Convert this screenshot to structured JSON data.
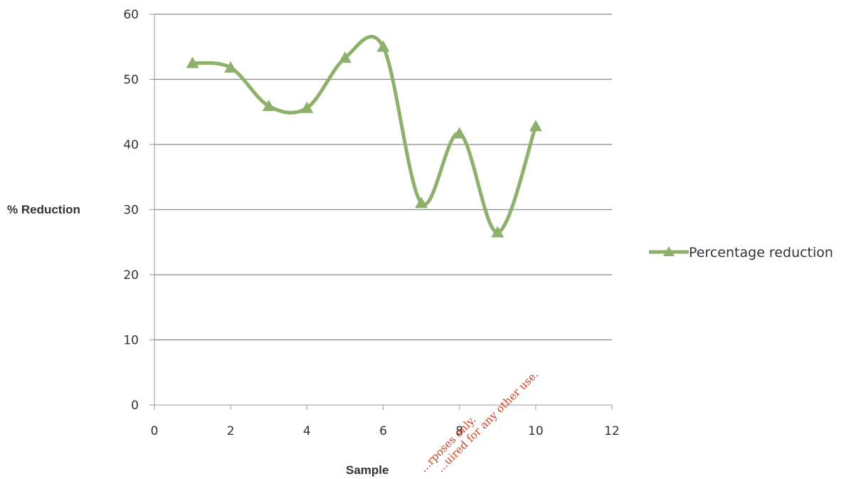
{
  "chart_data": {
    "type": "line",
    "title": "",
    "xlabel": "Sample",
    "ylabel": "% Reduction",
    "xlim": [
      0,
      12
    ],
    "ylim": [
      0,
      60
    ],
    "x_ticks": [
      0,
      2,
      4,
      6,
      8,
      10,
      12
    ],
    "y_ticks": [
      0,
      10,
      20,
      30,
      40,
      50,
      60
    ],
    "grid": "horizontal",
    "smooth": true,
    "legend_position": "right",
    "series": [
      {
        "name": "Percentage reduction",
        "color": "#8db06a",
        "marker": "triangle",
        "x": [
          1,
          2,
          3,
          4,
          5,
          6,
          7,
          8,
          9,
          10
        ],
        "y": [
          52.5,
          51.8,
          45.9,
          45.6,
          53.3,
          55,
          31,
          41.7,
          26.5,
          42.8
        ]
      }
    ]
  },
  "watermark": {
    "line1": "...rposes only.",
    "line2": "...uired for any other use."
  }
}
